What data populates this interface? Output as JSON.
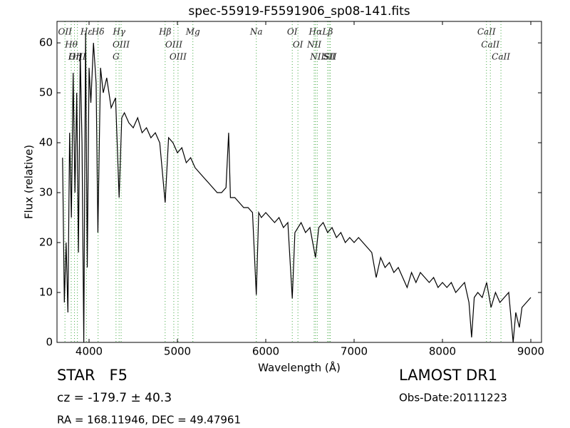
{
  "chart_data": {
    "type": "line",
    "title": "spec-55919-F5591906_sp08-141.fits",
    "x_label": "Wavelength (Å)",
    "y_label": "Flux (relative)",
    "xlim": [
      3637,
      9121
    ],
    "ylim": [
      0,
      64.3
    ],
    "xticks": [
      4000,
      5000,
      6000,
      7000,
      8000,
      9000
    ],
    "yticks": [
      0,
      10,
      20,
      30,
      40,
      50,
      60
    ],
    "series": [
      {
        "name": "flux",
        "color": "#000000",
        "x": [
          3700,
          3720,
          3740,
          3760,
          3780,
          3800,
          3820,
          3840,
          3860,
          3880,
          3900,
          3920,
          3940,
          3960,
          3980,
          4000,
          4020,
          4050,
          4080,
          4100,
          4130,
          4160,
          4200,
          4250,
          4300,
          4340,
          4370,
          4400,
          4450,
          4500,
          4550,
          4600,
          4650,
          4700,
          4750,
          4800,
          4861,
          4900,
          4950,
          5000,
          5050,
          5100,
          5150,
          5200,
          5250,
          5300,
          5350,
          5400,
          5450,
          5500,
          5550,
          5580,
          5600,
          5650,
          5700,
          5750,
          5800,
          5850,
          5893,
          5920,
          5950,
          6000,
          6050,
          6100,
          6150,
          6200,
          6250,
          6300,
          6330,
          6400,
          6450,
          6500,
          6563,
          6600,
          6650,
          6700,
          6750,
          6800,
          6850,
          6900,
          6950,
          7000,
          7050,
          7100,
          7150,
          7200,
          7250,
          7300,
          7350,
          7400,
          7450,
          7500,
          7550,
          7600,
          7650,
          7700,
          7750,
          7800,
          7850,
          7900,
          7950,
          8000,
          8050,
          8100,
          8150,
          8200,
          8250,
          8300,
          8330,
          8360,
          8400,
          8450,
          8500,
          8550,
          8600,
          8650,
          8700,
          8750,
          8800,
          8830,
          8870,
          8900,
          8950,
          9000
        ],
        "values": [
          37,
          8,
          20,
          6,
          42,
          25,
          54,
          30,
          50,
          18,
          58,
          40,
          0,
          62,
          15,
          55,
          48,
          60,
          52,
          22,
          55,
          50,
          53,
          47,
          49,
          29,
          45,
          46,
          44,
          43,
          45,
          42,
          43,
          41,
          42,
          40,
          28,
          41,
          40,
          38,
          39,
          36,
          37,
          35,
          34,
          33,
          32,
          31,
          30,
          30,
          31,
          42,
          29,
          29,
          28,
          27,
          27,
          26,
          9.5,
          26,
          25,
          26,
          25,
          24,
          25,
          23,
          24,
          8.8,
          22,
          24,
          22,
          23,
          17,
          23,
          24,
          22,
          23,
          21,
          22,
          20,
          21,
          20,
          21,
          20,
          19,
          18,
          13,
          17,
          15,
          16,
          14,
          15,
          13,
          11,
          14,
          12,
          14,
          13,
          12,
          13,
          11,
          12,
          11,
          12,
          10,
          11,
          12,
          8,
          1,
          9,
          10,
          9,
          12,
          7,
          10,
          8,
          9,
          10,
          0,
          6,
          3,
          7,
          8,
          9
        ]
      }
    ],
    "annotations": [
      {
        "text": "OII",
        "x": 3727
      },
      {
        "text": "Hθ",
        "x": 3798
      },
      {
        "text": "OIII",
        "x": 3868
      },
      {
        "text": "Hη",
        "x": 3835
      },
      {
        "text": "Hε",
        "x": 3970
      },
      {
        "text": "Hδ",
        "x": 4102
      },
      {
        "text": "Hγ",
        "x": 4340
      },
      {
        "text": "OIII",
        "x": 4363
      },
      {
        "text": "G",
        "x": 4305
      },
      {
        "text": "Hβ",
        "x": 4861
      },
      {
        "text": "OIII",
        "x": 4959
      },
      {
        "text": "OIII",
        "x": 5007
      },
      {
        "text": "Mg",
        "x": 5175
      },
      {
        "text": "Na",
        "x": 5893
      },
      {
        "text": "OI",
        "x": 6300
      },
      {
        "text": "OI",
        "x": 6364
      },
      {
        "text": "Hα",
        "x": 6563
      },
      {
        "text": "NII",
        "x": 6548
      },
      {
        "text": "NII",
        "x": 6583
      },
      {
        "text": "SII",
        "x": 6717
      },
      {
        "text": "Lβ",
        "x": 6700
      },
      {
        "text": "SII",
        "x": 6731
      },
      {
        "text": "CaII",
        "x": 8498
      },
      {
        "text": "CaII",
        "x": 8542
      },
      {
        "text": "CaII",
        "x": 8662
      }
    ],
    "object_class": "STAR   F5",
    "cz": "cz = -179.7 ± 40.3",
    "coords": "RA = 168.11946, DEC = 49.47961",
    "survey": "LAMOST DR1",
    "obs_date": "Obs-Date:20111223"
  }
}
